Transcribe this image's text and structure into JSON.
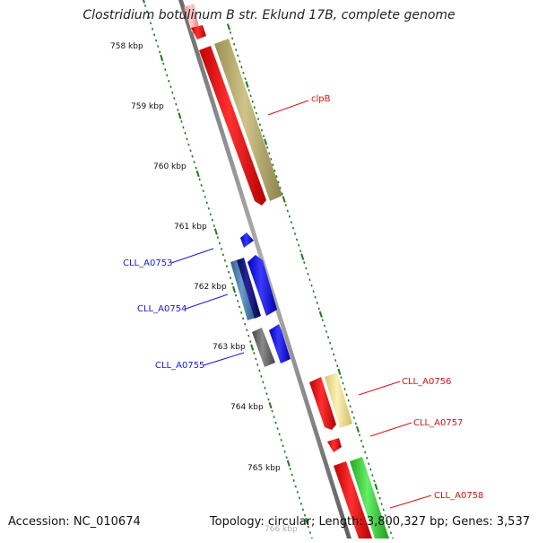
{
  "title": "Clostridium botulinum B str. Eklund 17B, complete genome",
  "footer": {
    "accession": "Accession: NC_010674",
    "topology": "Topology: circular; Length: 3,800,327 bp; Genes: 3,537"
  },
  "scale_labels": [
    "758 kbp",
    "759 kbp",
    "760 kbp",
    "761 kbp",
    "762 kbp",
    "763 kbp",
    "764 kbp",
    "765 kbp",
    "766 kbp"
  ],
  "gene_labels": [
    {
      "name": "clpB",
      "color": "#dd1111"
    },
    {
      "name": "CLL_A0753",
      "color": "#1a1ad0"
    },
    {
      "name": "CLL_A0754",
      "color": "#1a1ad0"
    },
    {
      "name": "CLL_A0755",
      "color": "#1a1ad0"
    },
    {
      "name": "CLL_A0756",
      "color": "#dd1111"
    },
    {
      "name": "CLL_A0757",
      "color": "#dd1111"
    },
    {
      "name": "CLL_A0758",
      "color": "#dd1111"
    }
  ],
  "colors": {
    "backbone": "#8a8a8a",
    "ticks": "#1e7a1e",
    "red": "#ff1a1a",
    "khaki": "#b8ad6e",
    "blue": "#1a1aff",
    "navy": "#141480",
    "steel": "#4a7fb0",
    "gray": "#6b6b6b",
    "pale_yellow": "#f2e49a",
    "green": "#44dd44",
    "pink": "#ffb3b3"
  }
}
